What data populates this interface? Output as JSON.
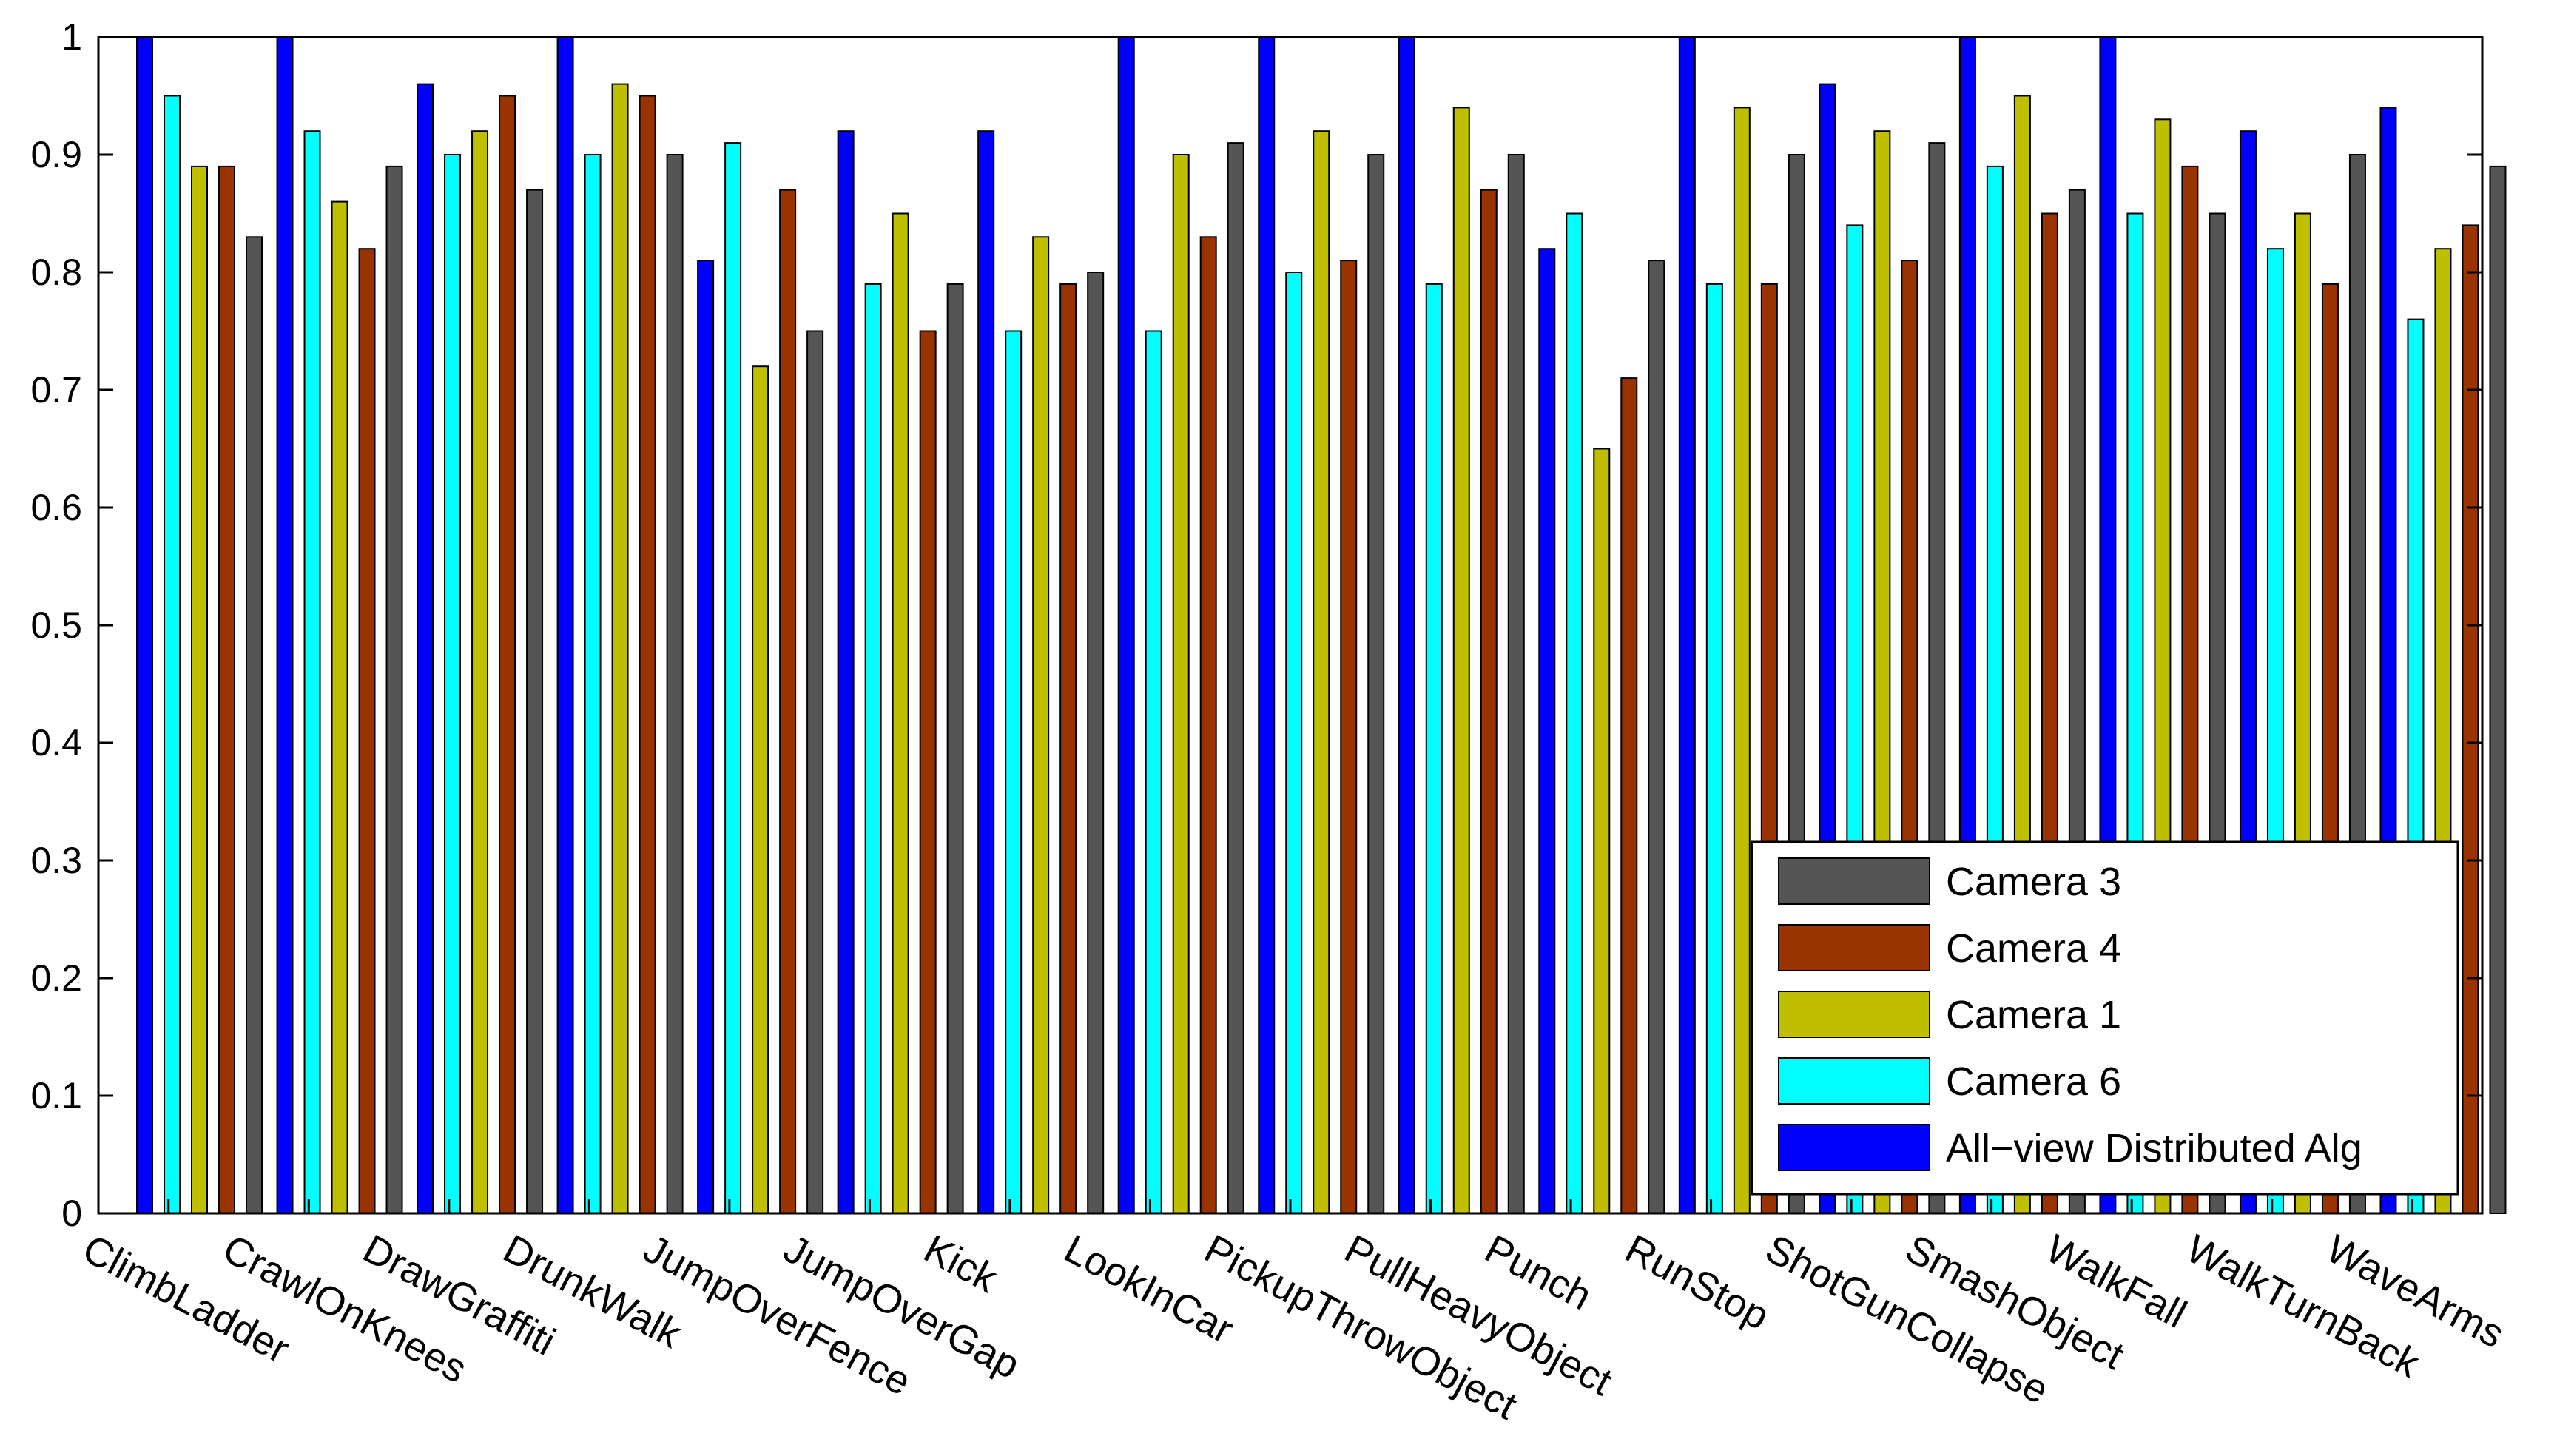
{
  "chart_data": {
    "type": "bar",
    "title": "",
    "xlabel": "",
    "ylabel": "",
    "ylim": [
      0,
      1
    ],
    "yticks": [
      "0",
      "0.1",
      "0.2",
      "0.3",
      "0.4",
      "0.5",
      "0.6",
      "0.7",
      "0.8",
      "0.9",
      "1"
    ],
    "grid": false,
    "legend_position": "bottom-right",
    "categories": [
      "ClimbLadder",
      "CrawlOnKnees",
      "DrawGraffiti",
      "DrunkWalk",
      "JumpOverFence",
      "JumpOverGap",
      "Kick",
      "LookInCar",
      "PickupThrowObject",
      "PullHeavyObject",
      "Punch",
      "RunStop",
      "ShotGunCollapse",
      "SmashObject",
      "WalkFall",
      "WalkTurnBack",
      "WaveArms"
    ],
    "series": [
      {
        "name": "All−view Distributed Alg",
        "color": "#0000ff",
        "values": [
          1.0,
          1.0,
          0.96,
          1.0,
          0.81,
          0.92,
          0.92,
          1.0,
          1.0,
          1.0,
          0.82,
          1.0,
          0.96,
          1.0,
          1.0,
          0.92,
          0.94
        ]
      },
      {
        "name": "Camera 6",
        "color": "#00ffff",
        "values": [
          0.95,
          0.92,
          0.9,
          0.9,
          0.91,
          0.79,
          0.75,
          0.75,
          0.8,
          0.79,
          0.85,
          0.79,
          0.84,
          0.89,
          0.85,
          0.82,
          0.76
        ]
      },
      {
        "name": "Camera 1",
        "color": "#bfbf00",
        "values": [
          0.89,
          0.86,
          0.92,
          0.96,
          0.72,
          0.85,
          0.83,
          0.9,
          0.92,
          0.94,
          0.65,
          0.94,
          0.92,
          0.95,
          0.93,
          0.85,
          0.82
        ]
      },
      {
        "name": "Camera 4",
        "color": "#993300",
        "values": [
          0.89,
          0.82,
          0.95,
          0.95,
          0.87,
          0.75,
          0.79,
          0.83,
          0.81,
          0.87,
          0.71,
          0.79,
          0.81,
          0.85,
          0.89,
          0.79,
          0.84
        ]
      },
      {
        "name": "Camera 3",
        "color": "#555555",
        "values": [
          0.83,
          0.89,
          0.87,
          0.9,
          0.75,
          0.79,
          0.8,
          0.91,
          0.9,
          0.9,
          0.81,
          0.9,
          0.91,
          0.87,
          0.85,
          0.9,
          0.89
        ]
      }
    ],
    "legend_order": [
      "Camera 3",
      "Camera 4",
      "Camera 1",
      "Camera 6",
      "All−view Distributed Alg"
    ]
  }
}
